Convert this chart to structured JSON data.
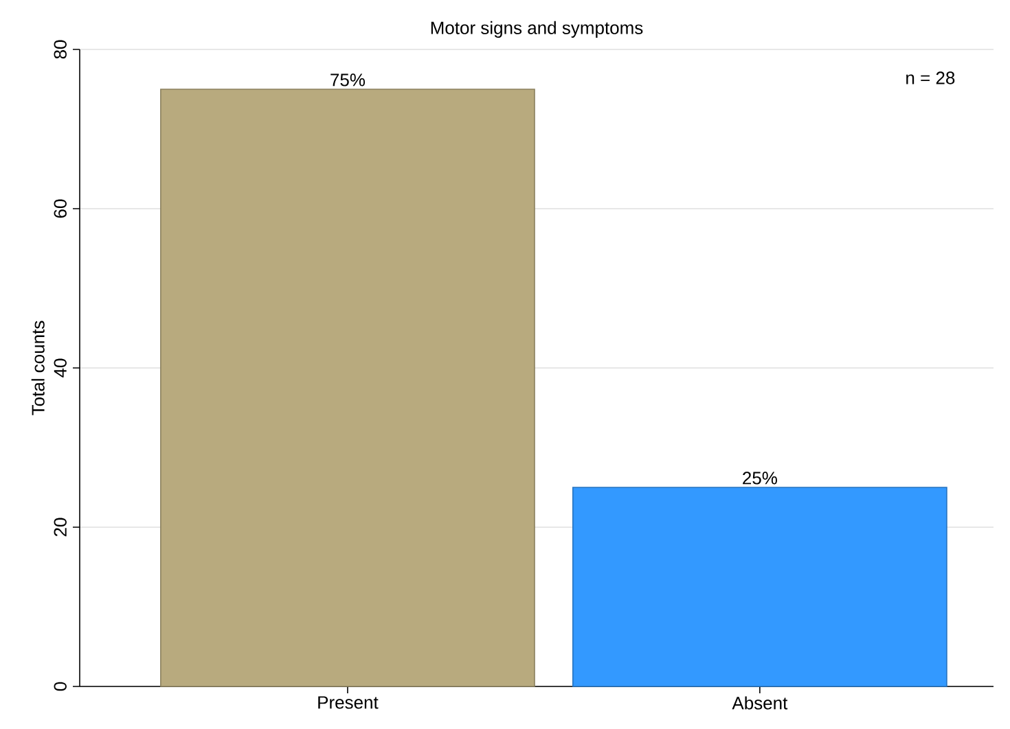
{
  "chart_data": {
    "type": "bar",
    "title": "Motor signs and symptoms",
    "ylabel": "Total counts",
    "categories": [
      "Present",
      "Absent"
    ],
    "values": [
      75,
      25
    ],
    "colors": [
      "#b8aa7e",
      "#3399ff"
    ],
    "value_labels": [
      "75%",
      "25%"
    ],
    "ylim": [
      0,
      80
    ],
    "yticks": [
      0,
      20,
      40,
      60,
      80
    ],
    "grid": "y",
    "annotations": [
      "n = 28"
    ]
  }
}
